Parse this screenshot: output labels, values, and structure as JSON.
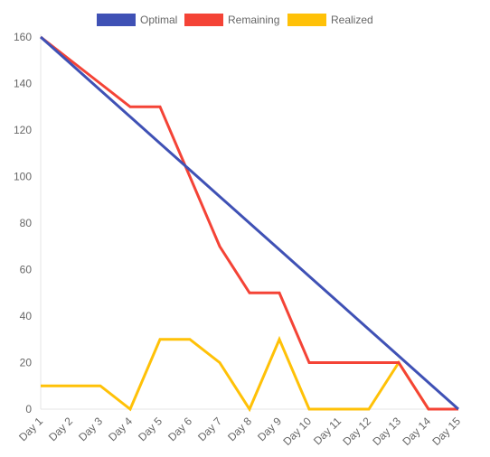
{
  "chart_data": {
    "type": "line",
    "title": "",
    "xlabel": "",
    "ylabel": "",
    "categories": [
      "Day 1",
      "Day 2",
      "Day 3",
      "Day 4",
      "Day 5",
      "Day 6",
      "Day 7",
      "Day 8",
      "Day 9",
      "Day 10",
      "Day 11",
      "Day 12",
      "Day 13",
      "Day 14",
      "Day 15"
    ],
    "ylim": [
      0,
      160
    ],
    "yticks": [
      0,
      20,
      40,
      60,
      80,
      100,
      120,
      140,
      160
    ],
    "grid": false,
    "legend_position": "top",
    "series": [
      {
        "name": "Optimal",
        "color": "#3f51b5",
        "values": [
          160,
          148.57,
          137.14,
          125.71,
          114.29,
          102.86,
          91.43,
          80,
          68.57,
          57.14,
          45.71,
          34.29,
          22.86,
          11.43,
          0
        ]
      },
      {
        "name": "Remaining",
        "color": "#f44336",
        "values": [
          160,
          150,
          140,
          130,
          130,
          100,
          70,
          50,
          50,
          20,
          20,
          20,
          20,
          0,
          0
        ]
      },
      {
        "name": "Realized",
        "color": "#ffc107",
        "values": [
          10,
          10,
          10,
          0,
          30,
          30,
          20,
          0,
          30,
          0,
          0,
          0,
          20,
          0,
          0
        ]
      }
    ]
  }
}
